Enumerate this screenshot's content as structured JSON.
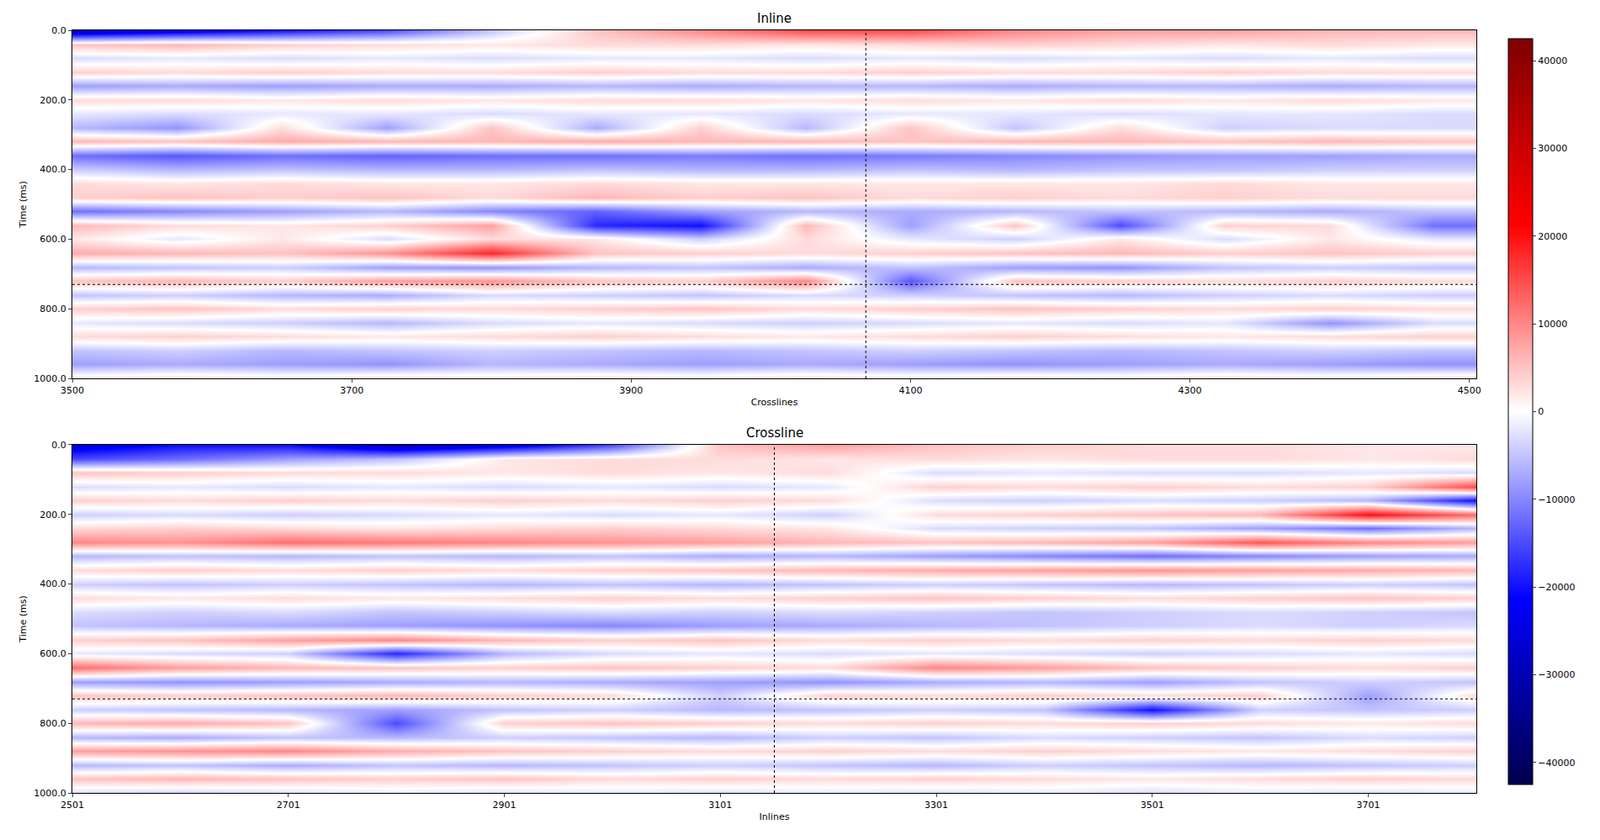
{
  "chart_data": [
    {
      "type": "heatmap",
      "title": "Inline",
      "x_label": "Crosslines",
      "y_label": "Time (ms)",
      "xlim": [
        3500,
        4505
      ],
      "ylim": [
        1000,
        0
      ],
      "xticks": [
        3500,
        3700,
        3900,
        4100,
        4300,
        4500
      ],
      "yticks": [
        {
          "value": 0,
          "label": "0.0"
        },
        {
          "value": 200,
          "label": "200.0"
        },
        {
          "value": 400,
          "label": "400.0"
        },
        {
          "value": 600,
          "label": "600.0"
        },
        {
          "value": 800,
          "label": "800.0"
        },
        {
          "value": 1000,
          "label": "1000.0"
        }
      ],
      "crosshair": {
        "x": 4068,
        "y": 730
      },
      "zlim": [
        -42500,
        42500
      ],
      "zticks": [
        {
          "value": -40000,
          "label": "−40000"
        },
        {
          "value": -30000,
          "label": "−30000"
        },
        {
          "value": -20000,
          "label": "−20000"
        },
        {
          "value": -10000,
          "label": "−10000"
        },
        {
          "value": 0,
          "label": "0"
        },
        {
          "value": 10000,
          "label": "10000"
        },
        {
          "value": 20000,
          "label": "20000"
        },
        {
          "value": 30000,
          "label": "30000"
        },
        {
          "value": 40000,
          "label": "40000"
        }
      ],
      "x": [
        3500,
        3575,
        3650,
        3725,
        3800,
        3875,
        3950,
        4025,
        4100,
        4175,
        4250,
        4325,
        4400,
        4475
      ],
      "y": [
        0,
        40,
        80,
        120,
        160,
        200,
        240,
        280,
        320,
        360,
        400,
        440,
        480,
        520,
        560,
        600,
        640,
        680,
        720,
        760,
        800,
        840,
        880,
        920,
        960,
        1000
      ],
      "z": [
        [
          -30000,
          -25000,
          -20000,
          -15000,
          -5000,
          5000,
          10000,
          15000,
          15000,
          10000,
          8000,
          8000,
          6000,
          6000
        ],
        [
          5000,
          6000,
          4000,
          3000,
          2000,
          3000,
          3000,
          2000,
          3000,
          4000,
          3000,
          2000,
          3000,
          2000
        ],
        [
          -3000,
          -2000,
          -3000,
          -2000,
          -3000,
          -2000,
          -2000,
          -3000,
          -2000,
          -3000,
          -2000,
          -3000,
          -2000,
          -3000
        ],
        [
          4000,
          3000,
          4000,
          3000,
          3000,
          4000,
          3000,
          3000,
          4000,
          3000,
          3000,
          4000,
          3000,
          3000
        ],
        [
          -8000,
          -7000,
          -8000,
          -7000,
          -7000,
          -6000,
          -7000,
          -6000,
          -6000,
          -7000,
          -6000,
          -6000,
          -7000,
          -6000
        ],
        [
          3000,
          3000,
          2000,
          3000,
          2000,
          3000,
          3000,
          2000,
          3000,
          2000,
          3000,
          2000,
          3000,
          2000
        ],
        [
          -2000,
          -3000,
          -2000,
          -2000,
          -3000,
          -2000,
          -2000,
          -3000,
          -2000,
          -2000,
          -3000,
          -2000,
          -2000,
          -3000
        ],
        [
          -6000,
          -9000,
          3000,
          -8000,
          5000,
          -7000,
          4000,
          -6000,
          5000,
          -5000,
          3000,
          -4000,
          -3000,
          -3000
        ],
        [
          6000,
          5000,
          7000,
          6000,
          6000,
          7000,
          6000,
          6000,
          5000,
          6000,
          6000,
          5000,
          6000,
          5000
        ],
        [
          -12000,
          -14000,
          -12000,
          -13000,
          -12000,
          -12000,
          -11000,
          -12000,
          -11000,
          -10000,
          -9000,
          -8000,
          -8000,
          -7000
        ],
        [
          -4000,
          -6000,
          -5000,
          -6000,
          -6000,
          -5000,
          -6000,
          -6000,
          -5000,
          -6000,
          -5000,
          -5000,
          -4000,
          -4000
        ],
        [
          3000,
          2000,
          3000,
          2000,
          2000,
          3000,
          2000,
          2000,
          2000,
          2000,
          2000,
          3000,
          2000,
          2000
        ],
        [
          4000,
          5000,
          4000,
          5000,
          3000,
          6000,
          4000,
          5000,
          3000,
          4000,
          3000,
          4000,
          3000,
          3000
        ],
        [
          -12000,
          -10000,
          -8000,
          -6000,
          -10000,
          -13000,
          -8000,
          -6000,
          -7000,
          -6000,
          -5000,
          -6000,
          -7000,
          -5000
        ],
        [
          6000,
          3000,
          2000,
          4000,
          8000,
          -18000,
          -20000,
          6000,
          -8000,
          5000,
          -15000,
          4000,
          3000,
          -12000
        ],
        [
          2000,
          -2000,
          2000,
          -3000,
          3000,
          2000,
          -4000,
          3000,
          -2000,
          -4000,
          2000,
          -3000,
          2000,
          -2000
        ],
        [
          7000,
          6000,
          5000,
          9000,
          18000,
          5000,
          4000,
          3000,
          4000,
          5000,
          6000,
          4000,
          5000,
          4000
        ],
        [
          -6000,
          -5000,
          -4000,
          -8000,
          -9000,
          -6000,
          -5000,
          -7000,
          -5000,
          -8000,
          -9000,
          -5000,
          -4000,
          -5000
        ],
        [
          5000,
          6000,
          4000,
          8000,
          9000,
          5000,
          4000,
          10000,
          -14000,
          5000,
          4000,
          3000,
          4000,
          3000
        ],
        [
          -5000,
          -4000,
          -6000,
          -7000,
          -3000,
          -4000,
          -5000,
          -3000,
          -4000,
          -5000,
          -6000,
          -4000,
          -3000,
          -4000
        ],
        [
          4000,
          5000,
          3000,
          4000,
          3000,
          4000,
          5000,
          3000,
          4000,
          5000,
          4000,
          3000,
          4000,
          3000
        ],
        [
          -2000,
          -3000,
          -4000,
          -6000,
          -3000,
          -2000,
          -3000,
          -4000,
          -3000,
          -2000,
          -3000,
          -2000,
          -9000,
          -3000
        ],
        [
          3000,
          4000,
          3000,
          2000,
          3000,
          4000,
          3000,
          2000,
          3000,
          4000,
          3000,
          2000,
          3000,
          4000
        ],
        [
          -5000,
          -4000,
          -6000,
          -5000,
          -4000,
          -5000,
          -6000,
          -5000,
          -4000,
          -5000,
          -6000,
          -5000,
          -4000,
          -5000
        ],
        [
          -8000,
          -7000,
          -8000,
          -9000,
          -6000,
          -7000,
          -8000,
          -7000,
          -8000,
          -9000,
          -8000,
          -7000,
          -8000,
          -9000
        ],
        [
          2000,
          3000,
          2000,
          3000,
          2000,
          3000,
          2000,
          3000,
          2000,
          3000,
          2000,
          3000,
          2000,
          3000
        ]
      ]
    },
    {
      "type": "heatmap",
      "title": "Crossline",
      "x_label": "Inlines",
      "y_label": "Time (ms)",
      "xlim": [
        2501,
        3801
      ],
      "ylim": [
        1000,
        0
      ],
      "xticks": [
        2501,
        2701,
        2901,
        3101,
        3301,
        3501,
        3701
      ],
      "yticks": [
        {
          "value": 0,
          "label": "0.0"
        },
        {
          "value": 200,
          "label": "200.0"
        },
        {
          "value": 400,
          "label": "400.0"
        },
        {
          "value": 600,
          "label": "600.0"
        },
        {
          "value": 800,
          "label": "800.0"
        },
        {
          "value": 1000,
          "label": "1000.0"
        }
      ],
      "crosshair": {
        "x": 3151,
        "y": 730
      },
      "x": [
        2501,
        2601,
        2701,
        2801,
        2901,
        3001,
        3101,
        3201,
        3301,
        3401,
        3501,
        3601,
        3701,
        3801
      ],
      "y": [
        0,
        40,
        80,
        120,
        160,
        200,
        240,
        280,
        320,
        360,
        400,
        440,
        480,
        520,
        560,
        600,
        640,
        680,
        720,
        760,
        800,
        840,
        880,
        920,
        960,
        1000
      ],
      "z": [
        [
          -25000,
          -20000,
          -20000,
          -30000,
          -25000,
          -15000,
          5000,
          8000,
          5000,
          4000,
          3000,
          3000,
          2000,
          2000
        ],
        [
          -15000,
          -12000,
          -8000,
          -5000,
          2000,
          3000,
          3000,
          2000,
          3000,
          2000,
          3000,
          3000,
          2000,
          3000
        ],
        [
          5000,
          4000,
          3000,
          3000,
          2000,
          3000,
          2000,
          3000,
          -3000,
          -2000,
          -3000,
          -3000,
          -2000,
          -3000
        ],
        [
          -3000,
          -2000,
          -3000,
          -2000,
          -3000,
          -2000,
          -3000,
          -2000,
          4000,
          3000,
          4000,
          3000,
          4000,
          15000
        ],
        [
          4000,
          3000,
          4000,
          3000,
          4000,
          3000,
          4000,
          3000,
          -3000,
          -4000,
          -3000,
          -4000,
          -6000,
          -20000
        ],
        [
          -4000,
          -3000,
          -4000,
          -3000,
          -2000,
          -3000,
          -2000,
          -4000,
          3000,
          4000,
          5000,
          6000,
          20000,
          12000
        ],
        [
          3000,
          4000,
          3000,
          2000,
          3000,
          4000,
          3000,
          2000,
          -3000,
          -4000,
          -5000,
          -8000,
          -12000,
          -6000
        ],
        [
          10000,
          9000,
          12000,
          11000,
          10000,
          9000,
          8000,
          6000,
          5000,
          6000,
          8000,
          14000,
          10000,
          8000
        ],
        [
          -6000,
          -5000,
          -6000,
          -5000,
          -6000,
          -5000,
          -7000,
          -6000,
          -8000,
          -10000,
          -12000,
          -10000,
          -8000,
          -7000
        ],
        [
          3000,
          4000,
          3000,
          4000,
          3000,
          4000,
          5000,
          6000,
          7000,
          8000,
          9000,
          8000,
          7000,
          6000
        ],
        [
          -4000,
          -5000,
          -4000,
          -5000,
          -6000,
          -5000,
          -6000,
          -5000,
          -4000,
          -5000,
          -6000,
          -5000,
          -4000,
          -5000
        ],
        [
          3000,
          2000,
          3000,
          2000,
          3000,
          4000,
          3000,
          4000,
          5000,
          4000,
          3000,
          4000,
          5000,
          4000
        ],
        [
          -3000,
          -4000,
          -3000,
          -5000,
          -4000,
          -3000,
          -4000,
          -3000,
          -4000,
          -5000,
          -4000,
          -3000,
          -4000,
          -5000
        ],
        [
          -5000,
          -6000,
          -7000,
          -8000,
          -9000,
          -10000,
          -8000,
          -7000,
          -6000,
          -5000,
          -4000,
          -3000,
          -4000,
          -3000
        ],
        [
          4000,
          5000,
          8000,
          10000,
          6000,
          4000,
          5000,
          3000,
          4000,
          3000,
          4000,
          3000,
          4000,
          3000
        ],
        [
          -2000,
          -3000,
          -4000,
          -18000,
          -6000,
          -3000,
          -2000,
          -3000,
          -2000,
          -3000,
          -4000,
          -3000,
          -2000,
          -3000
        ],
        [
          12000,
          8000,
          6000,
          5000,
          4000,
          5000,
          4000,
          3000,
          10000,
          8000,
          5000,
          4000,
          3000,
          4000
        ],
        [
          -8000,
          -9000,
          -8000,
          -7000,
          -6000,
          -7000,
          -8000,
          -9000,
          -7000,
          -6000,
          -8000,
          -5000,
          -4000,
          -5000
        ],
        [
          5000,
          4000,
          5000,
          6000,
          4000,
          3000,
          -4000,
          4000,
          3000,
          4000,
          3000,
          4000,
          -8000,
          3000
        ],
        [
          -4000,
          -5000,
          -6000,
          -8000,
          -5000,
          -4000,
          -6000,
          -5000,
          -4000,
          -5000,
          -20000,
          -4000,
          -5000,
          -4000
        ],
        [
          6000,
          7000,
          5000,
          -15000,
          4000,
          5000,
          4000,
          3000,
          4000,
          3000,
          4000,
          3000,
          2000,
          3000
        ],
        [
          -6000,
          -7000,
          -5000,
          -6000,
          -4000,
          -5000,
          -6000,
          -4000,
          -5000,
          -3000,
          -4000,
          -5000,
          -3000,
          -4000
        ],
        [
          8000,
          9000,
          10000,
          7000,
          5000,
          4000,
          3000,
          4000,
          3000,
          4000,
          3000,
          2000,
          3000,
          4000
        ],
        [
          -6000,
          -5000,
          -7000,
          -5000,
          -6000,
          -5000,
          -4000,
          -5000,
          -6000,
          -4000,
          -5000,
          -6000,
          -5000,
          -4000
        ],
        [
          5000,
          6000,
          5000,
          4000,
          5000,
          3000,
          4000,
          3000,
          4000,
          3000,
          2000,
          3000,
          4000,
          3000
        ],
        [
          -3000,
          -4000,
          -3000,
          -2000,
          -3000,
          -2000,
          -3000,
          -2000,
          -3000,
          -2000,
          -3000,
          -2000,
          -3000,
          -2000
        ]
      ]
    }
  ]
}
